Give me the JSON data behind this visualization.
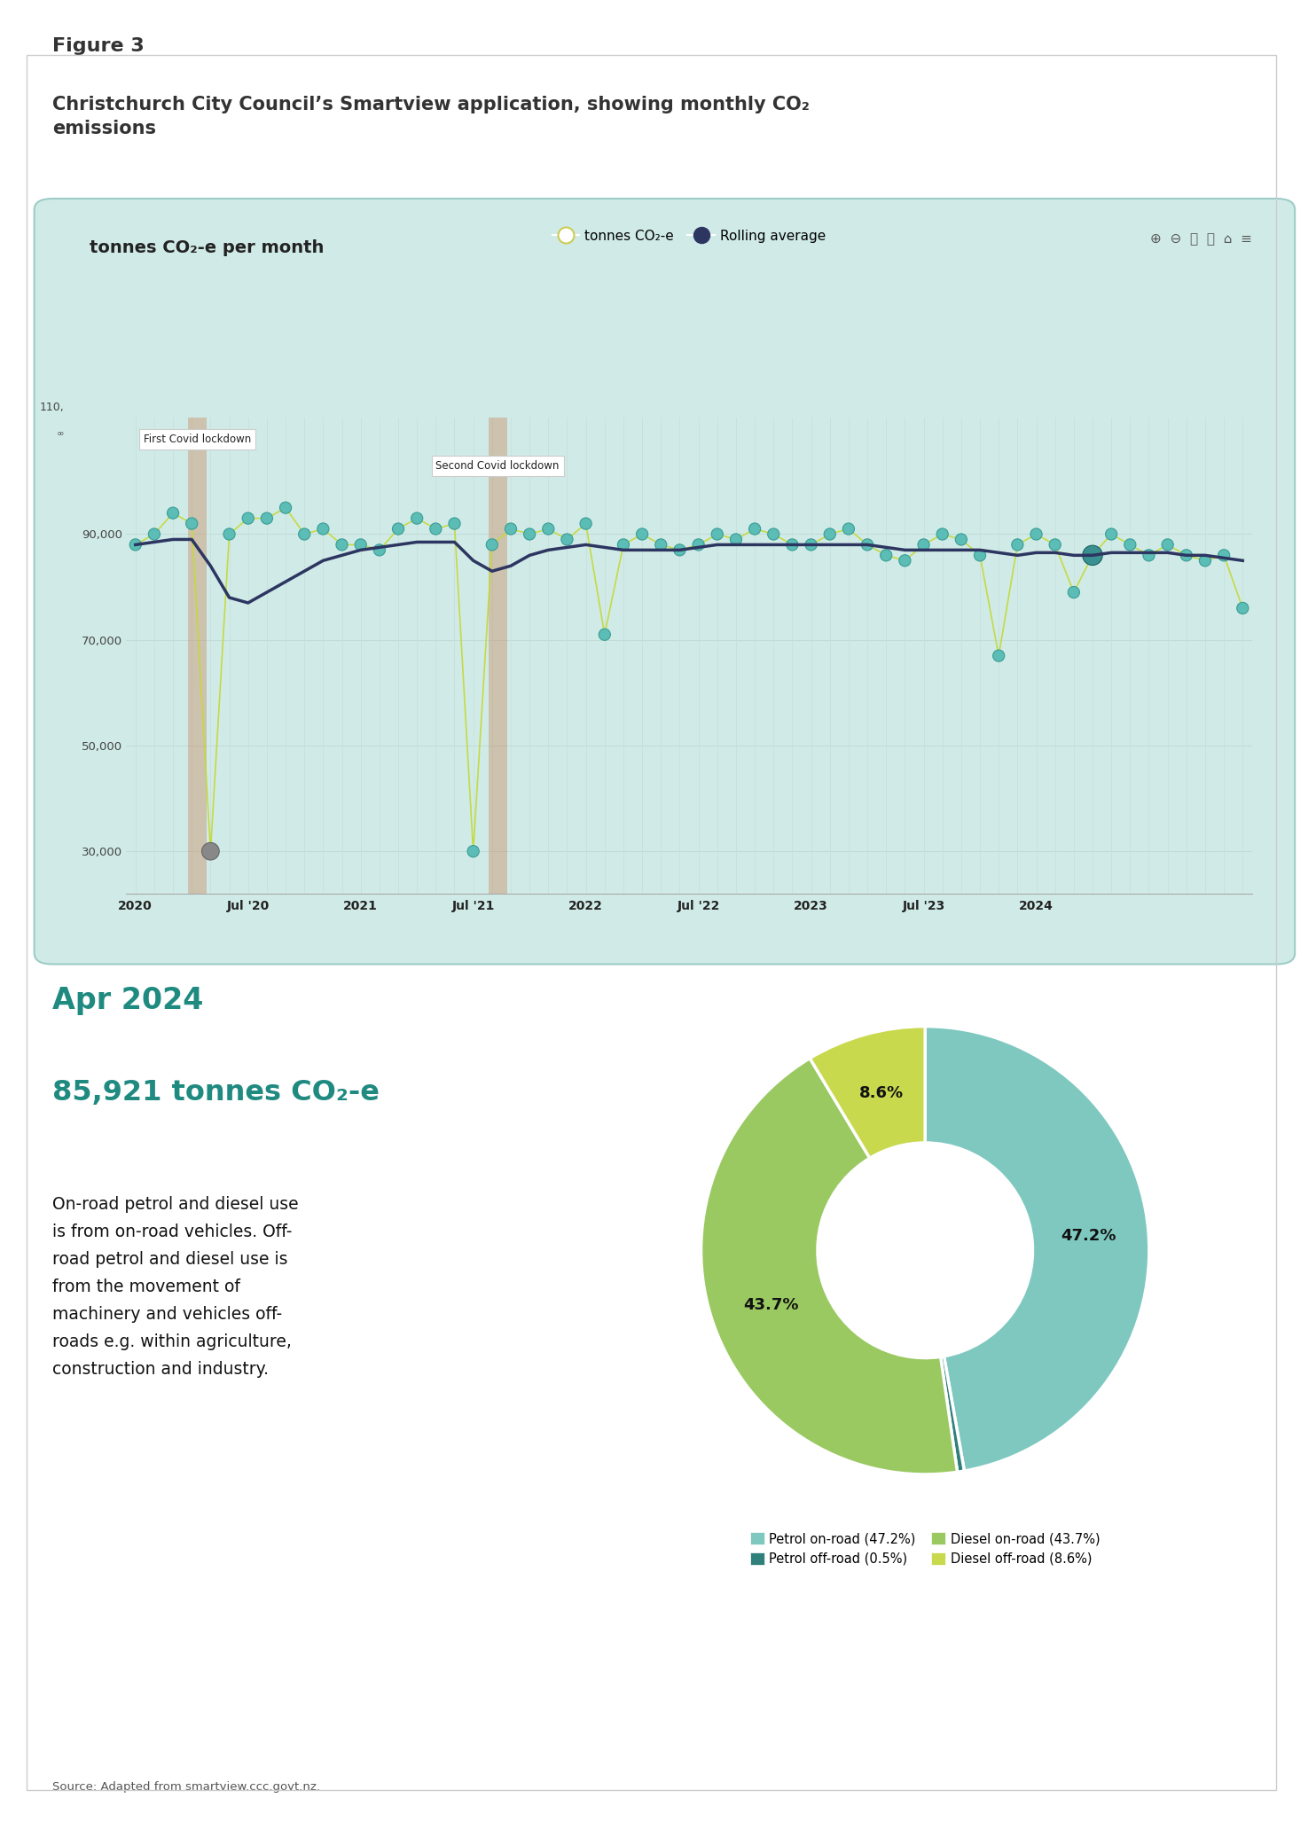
{
  "figure_label": "Figure 3",
  "figure_title": "Christchurch City Council’s Smartview application, showing monthly CO₂\nemissions",
  "chart_bg_color": "#d0ebe7",
  "chart_border_color": "#b0d8d2",
  "chart_title": "tonnes CO₂-e per month",
  "rolling_avg_color": "#2d3561",
  "dot_fill_color": "#5bbdb5",
  "dot_outline_color": "#3a9d95",
  "line_color": "#c5d93a",
  "covid1_color": "#c8906a",
  "covid2_color": "#c8906a",
  "grid_color": "#b8dbd7",
  "x_tick_labels": [
    "2020",
    "Jul '20",
    "2021",
    "Jul '21",
    "2022",
    "Jul '22",
    "2023",
    "Jul '23",
    "2024"
  ],
  "monthly_values": [
    88000,
    90000,
    94000,
    92000,
    30000,
    90000,
    93000,
    93000,
    95000,
    90000,
    91000,
    88000,
    88000,
    87000,
    91000,
    93000,
    91000,
    92000,
    30000,
    88000,
    91000,
    90000,
    91000,
    89000,
    92000,
    71000,
    88000,
    90000,
    88000,
    87000,
    88000,
    90000,
    89000,
    91000,
    90000,
    88000,
    88000,
    90000,
    91000,
    88000,
    86000,
    85000,
    88000,
    90000,
    89000,
    86000,
    67000,
    88000,
    90000,
    88000,
    79000,
    86000,
    90000,
    88000,
    86000,
    88000,
    86000,
    85000,
    86000,
    76000
  ],
  "rolling_avg_values": [
    88000,
    88500,
    89000,
    89000,
    84000,
    78000,
    77000,
    79000,
    81000,
    83000,
    85000,
    86000,
    87000,
    87500,
    88000,
    88500,
    88500,
    88500,
    85000,
    83000,
    84000,
    86000,
    87000,
    87500,
    88000,
    87500,
    87000,
    87000,
    87000,
    87000,
    87500,
    88000,
    88000,
    88000,
    88000,
    88000,
    88000,
    88000,
    88000,
    88000,
    87500,
    87000,
    87000,
    87000,
    87000,
    87000,
    86500,
    86000,
    86500,
    86500,
    86000,
    86000,
    86500,
    86500,
    86500,
    86500,
    86000,
    86000,
    85500,
    85000
  ],
  "pie_values": [
    47.2,
    0.5,
    43.7,
    8.6
  ],
  "pie_colors": [
    "#7ec8c0",
    "#2f7f7a",
    "#9ac962",
    "#c8d94e"
  ],
  "pie_labels_on": [
    "47.2%",
    "",
    "43.7%",
    "8.6%"
  ],
  "pie_legend_labels": [
    "Petrol on-road (47.2%)",
    "Petrol off-road (0.5%)",
    "Diesel on-road (43.7%)",
    "Diesel off-road (8.6%)"
  ],
  "pie_legend_colors": [
    "#7ec8c0",
    "#2f7f7a",
    "#9ac962",
    "#c8d94e"
  ],
  "month_label": "Apr 2024",
  "value_label": "85,921 tonnes CO₂-e",
  "description": "On-road petrol and diesel use\nis from on-road vehicles. Off-\nroad petrol and diesel use is\nfrom the movement of\nmachinery and vehicles off-\nroads e.g. within agriculture,\nconstruction and industry.",
  "source_text": "Source: Adapted from smartview.ccc.govt.nz.",
  "teal_color": "#1f8a80",
  "dark_text": "#333333",
  "covid1_label": "First Covid lockdown",
  "covid2_label": "Second Covid lockdown",
  "toolbar_icons": "⊕ ⊖ 🔍 ✋ ⌂ ≡"
}
